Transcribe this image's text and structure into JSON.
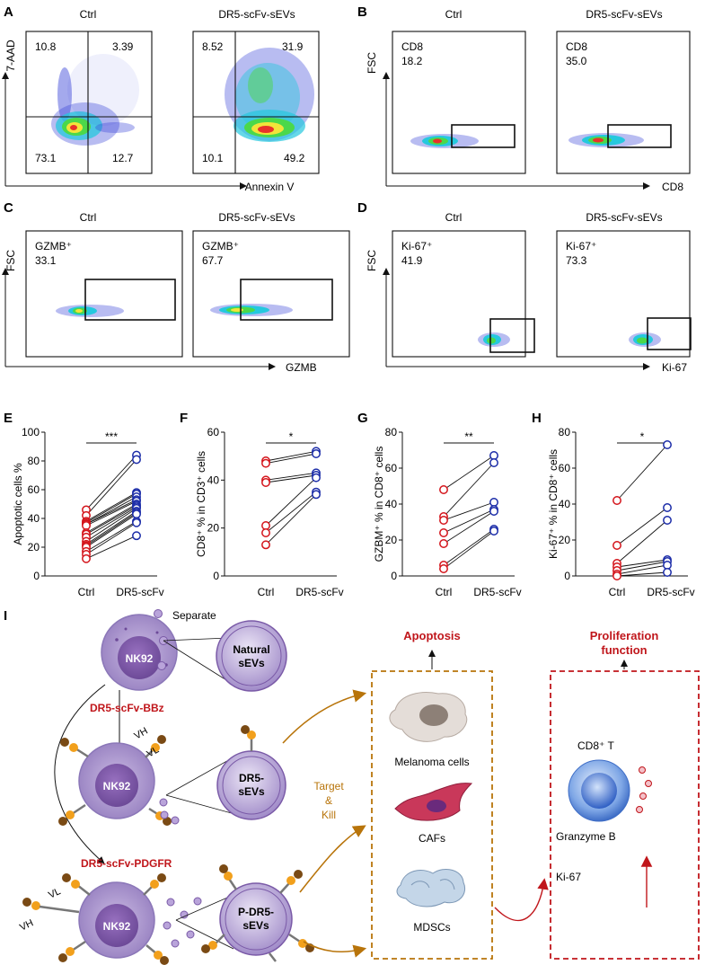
{
  "panel_letters": [
    "A",
    "B",
    "C",
    "D",
    "E",
    "F",
    "G",
    "H",
    "I"
  ],
  "flow": {
    "A": {
      "plots": [
        {
          "title": "Ctrl",
          "values": [
            "10.8",
            "3.39",
            "73.1",
            "12.7"
          ]
        },
        {
          "title": "DR5-scFv-sEVs",
          "values": [
            "8.52",
            "31.9",
            "10.1",
            "49.2"
          ]
        }
      ],
      "xlabel": "Annexin V",
      "ylabel": "7-AAD"
    },
    "B": {
      "plots": [
        {
          "title": "Ctrl",
          "gate_label": "CD8",
          "value": "18.2"
        },
        {
          "title": "DR5-scFv-sEVs",
          "gate_label": "CD8",
          "value": "35.0"
        }
      ],
      "xlabel": "CD8",
      "ylabel": "FSC"
    },
    "C": {
      "plots": [
        {
          "title": "Ctrl",
          "gate_label": "GZMB⁺",
          "value": "33.1"
        },
        {
          "title": "DR5-scFv-sEVs",
          "gate_label": "GZMB⁺",
          "value": "67.7"
        }
      ],
      "xlabel": "GZMB",
      "ylabel": "FSC"
    },
    "D": {
      "plots": [
        {
          "title": "Ctrl",
          "gate_label": "Ki-67⁺",
          "value": "41.9"
        },
        {
          "title": "DR5-scFv-sEVs",
          "gate_label": "Ki-67⁺",
          "value": "73.3"
        }
      ],
      "xlabel": "Ki-67",
      "ylabel": "FSC"
    }
  },
  "chart_data": [
    {
      "panel": "E",
      "type": "scatter",
      "ylabel": "Apoptotic cells %",
      "categories": [
        "Ctrl",
        "DR5-scFv"
      ],
      "ylim": [
        0,
        100
      ],
      "yticks": [
        0,
        20,
        40,
        60,
        80,
        100
      ],
      "significance": "***",
      "ctrl": [
        46,
        42,
        38,
        37,
        36,
        36,
        35,
        30,
        29,
        27,
        24,
        22,
        21,
        20,
        17,
        15,
        12
      ],
      "treated": [
        84,
        81,
        58,
        57,
        55,
        53,
        52,
        50,
        49,
        48,
        47,
        45,
        44,
        43,
        38,
        37,
        28
      ]
    },
    {
      "panel": "F",
      "type": "scatter",
      "ylabel": "CD8⁺ % in CD3⁺ cells",
      "categories": [
        "Ctrl",
        "DR5-scFv"
      ],
      "ylim": [
        0,
        60
      ],
      "yticks": [
        0,
        20,
        40,
        60
      ],
      "significance": "*",
      "ctrl": [
        48,
        47,
        40,
        39,
        21,
        18,
        13
      ],
      "treated": [
        52,
        51,
        43,
        42,
        41,
        35,
        34
      ]
    },
    {
      "panel": "G",
      "type": "scatter",
      "ylabel": "GZBM⁺ % in CD8⁺ cells",
      "categories": [
        "Ctrl",
        "DR5-scFv"
      ],
      "ylim": [
        0,
        80
      ],
      "yticks": [
        0,
        20,
        40,
        60,
        80
      ],
      "significance": "**",
      "ctrl": [
        48,
        33,
        31,
        24,
        18,
        6,
        4
      ],
      "treated": [
        67,
        63,
        41,
        37,
        36,
        26,
        25
      ]
    },
    {
      "panel": "H",
      "type": "scatter",
      "ylabel": "Ki-67⁺ % in CD8⁺ cells",
      "categories": [
        "Ctrl",
        "DR5-scFv"
      ],
      "ylim": [
        0,
        80
      ],
      "yticks": [
        0,
        20,
        40,
        60,
        80
      ],
      "significance": "*",
      "ctrl": [
        42,
        17,
        7,
        5,
        3,
        1,
        0
      ],
      "treated": [
        73,
        38,
        31,
        9,
        8,
        6,
        2
      ]
    }
  ],
  "schematic": {
    "separate": "Separate",
    "nk92": "NK92",
    "natural_sevs": [
      "Natural",
      "sEVs"
    ],
    "dr5_sevs": [
      "DR5-",
      "sEVs"
    ],
    "p_dr5_sevs": [
      "P-DR5-",
      "sEVs"
    ],
    "bbz": "DR5-scFv-BBz",
    "pdgfr": "DR5-scFv-PDGFR",
    "vh": "VH",
    "vl": "VL",
    "target_kill": [
      "Target",
      "&",
      "Kill"
    ],
    "apoptosis": "Apoptosis",
    "proliferation": [
      "Proliferation",
      "function"
    ],
    "melanoma": "Melanoma cells",
    "cafs": "CAFs",
    "mdscs": "MDSCs",
    "cd8t": "CD8⁺ T",
    "granzyme": "Granzyme B",
    "ki67": "Ki-67",
    "colors": {
      "red": "#c0161b",
      "brown": "#b8740a",
      "purple": "#9b86c2",
      "dark_purple": "#7a5aa7",
      "blue": "#1b2ca8"
    }
  }
}
